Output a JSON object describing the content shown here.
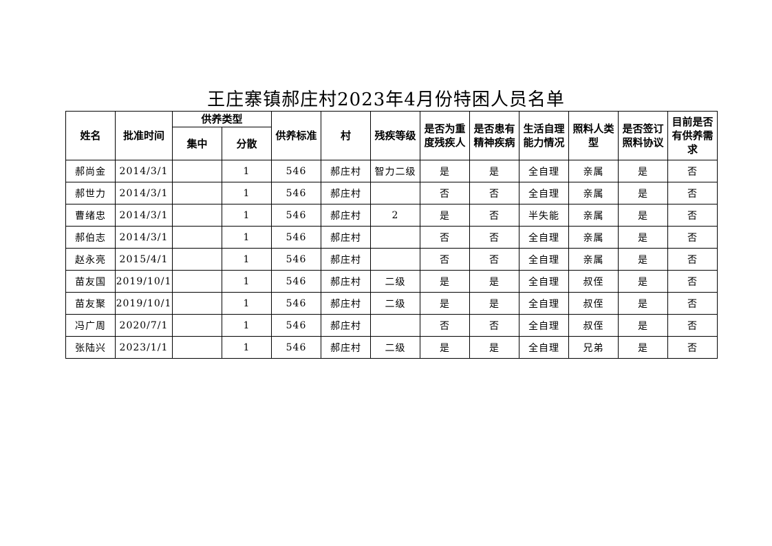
{
  "title": "王庄寨镇郝庄村2023年4月份特困人员名单",
  "headers": {
    "name": "姓名",
    "approval_time": "批准时间",
    "support_type": "供养类型",
    "concentrated": "集中",
    "dispersed": "分散",
    "support_standard": "供养标准",
    "village": "村",
    "disability_level": "残疾等级",
    "severe_disability": "是否为重度残疾人",
    "mental_illness": "是否患有精神疾病",
    "self_care": "生活自理能力情况",
    "caregiver_type": "照料人类型",
    "care_agreement": "是否签订照料协议",
    "support_need": "目前是否有供养需求"
  },
  "rows": [
    [
      "郝尚金",
      "2014/3/1",
      "",
      "1",
      "546",
      "郝庄村",
      "智力二级",
      "是",
      "是",
      "全自理",
      "亲属",
      "是",
      "否"
    ],
    [
      "郝世力",
      "2014/3/1",
      "",
      "1",
      "546",
      "郝庄村",
      "",
      "否",
      "否",
      "全自理",
      "亲属",
      "是",
      "否"
    ],
    [
      "曹绪忠",
      "2014/3/1",
      "",
      "1",
      "546",
      "郝庄村",
      "2",
      "是",
      "否",
      "半失能",
      "亲属",
      "是",
      "否"
    ],
    [
      "郝伯志",
      "2014/3/1",
      "",
      "1",
      "546",
      "郝庄村",
      "",
      "否",
      "否",
      "全自理",
      "亲属",
      "是",
      "否"
    ],
    [
      "赵永亮",
      "2015/4/1",
      "",
      "1",
      "546",
      "郝庄村",
      "",
      "否",
      "否",
      "全自理",
      "亲属",
      "是",
      "否"
    ],
    [
      "苗友国",
      "2019/10/1",
      "",
      "1",
      "546",
      "郝庄村",
      "二级",
      "是",
      "是",
      "全自理",
      "叔侄",
      "是",
      "否"
    ],
    [
      "苗友聚",
      "2019/10/1",
      "",
      "1",
      "546",
      "郝庄村",
      "二级",
      "是",
      "是",
      "全自理",
      "叔侄",
      "是",
      "否"
    ],
    [
      "冯广周",
      "2020/7/1",
      "",
      "1",
      "546",
      "郝庄村",
      "",
      "否",
      "否",
      "全自理",
      "叔侄",
      "是",
      "否"
    ],
    [
      "张陆兴",
      "2023/1/1",
      "",
      "1",
      "546",
      "郝庄村",
      "二级",
      "是",
      "是",
      "全自理",
      "兄弟",
      "是",
      "否"
    ]
  ]
}
